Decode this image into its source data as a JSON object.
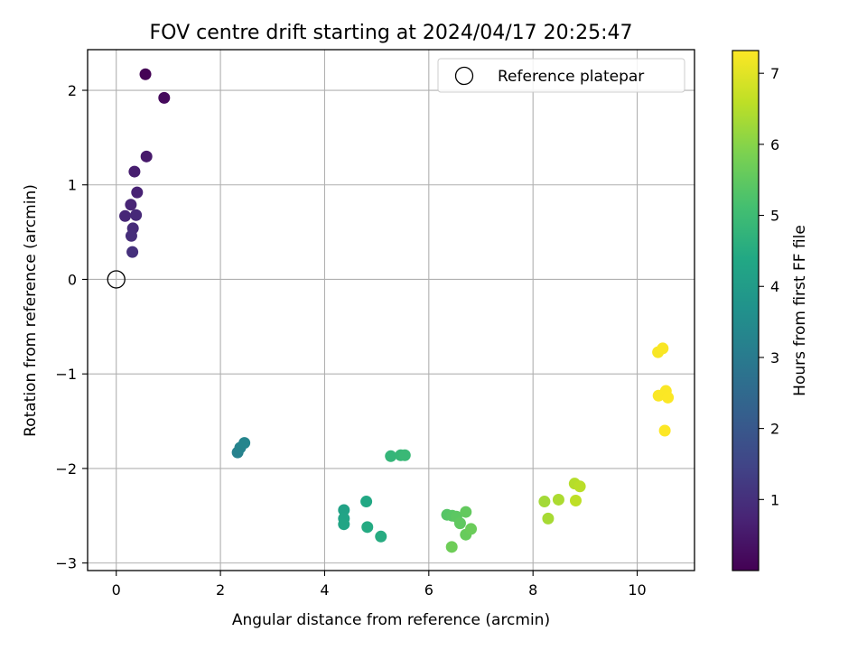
{
  "chart_data": {
    "type": "scatter",
    "title": "FOV centre drift starting at 2024/04/17 20:25:47",
    "xlabel": "Angular distance from reference (arcmin)",
    "ylabel": "Rotation from reference (arcmin)",
    "colorbar_label": "Hours from first FF file",
    "xlim": [
      -0.55,
      11.1
    ],
    "ylim": [
      -3.08,
      2.43
    ],
    "x_ticks": [
      0,
      2,
      4,
      6,
      8,
      10
    ],
    "y_ticks": [
      -3,
      -2,
      -1,
      0,
      1,
      2
    ],
    "colorbar_range": [
      0.0,
      7.32
    ],
    "colorbar_ticks": [
      1,
      2,
      3,
      4,
      5,
      6,
      7
    ],
    "colormap": "viridis",
    "grid": true,
    "legend_position": "upper-right",
    "legend_entries": [
      {
        "label": "Reference platepar",
        "marker": "open-circle",
        "color": "#000000"
      }
    ],
    "reference_point": {
      "x": 0.0,
      "y": 0.0
    },
    "points": [
      {
        "x": 0.56,
        "y": 2.17,
        "hours": 0.02
      },
      {
        "x": 0.92,
        "y": 1.92,
        "hours": 0.17
      },
      {
        "x": 0.58,
        "y": 1.3,
        "hours": 0.5
      },
      {
        "x": 0.35,
        "y": 1.14,
        "hours": 0.6
      },
      {
        "x": 0.4,
        "y": 0.92,
        "hours": 0.7
      },
      {
        "x": 0.28,
        "y": 0.79,
        "hours": 0.75
      },
      {
        "x": 0.17,
        "y": 0.67,
        "hours": 0.8
      },
      {
        "x": 0.38,
        "y": 0.68,
        "hours": 0.85
      },
      {
        "x": 0.32,
        "y": 0.54,
        "hours": 0.9
      },
      {
        "x": 0.29,
        "y": 0.46,
        "hours": 0.95
      },
      {
        "x": 0.31,
        "y": 0.29,
        "hours": 1.0
      },
      {
        "x": 2.33,
        "y": -1.83,
        "hours": 3.2
      },
      {
        "x": 2.38,
        "y": -1.78,
        "hours": 3.25
      },
      {
        "x": 2.46,
        "y": -1.73,
        "hours": 3.3
      },
      {
        "x": 4.37,
        "y": -2.44,
        "hours": 4.2
      },
      {
        "x": 4.37,
        "y": -2.53,
        "hours": 4.25
      },
      {
        "x": 4.37,
        "y": -2.59,
        "hours": 4.3
      },
      {
        "x": 4.8,
        "y": -2.35,
        "hours": 4.4
      },
      {
        "x": 4.82,
        "y": -2.62,
        "hours": 4.45
      },
      {
        "x": 5.08,
        "y": -2.72,
        "hours": 4.5
      },
      {
        "x": 5.27,
        "y": -1.87,
        "hours": 4.8
      },
      {
        "x": 5.46,
        "y": -1.86,
        "hours": 4.85
      },
      {
        "x": 5.54,
        "y": -1.86,
        "hours": 4.9
      },
      {
        "x": 6.35,
        "y": -2.49,
        "hours": 5.35
      },
      {
        "x": 6.45,
        "y": -2.5,
        "hours": 5.4
      },
      {
        "x": 6.53,
        "y": -2.51,
        "hours": 5.45
      },
      {
        "x": 6.6,
        "y": -2.58,
        "hours": 5.5
      },
      {
        "x": 6.71,
        "y": -2.46,
        "hours": 5.55
      },
      {
        "x": 6.71,
        "y": -2.7,
        "hours": 5.6
      },
      {
        "x": 6.81,
        "y": -2.64,
        "hours": 5.65
      },
      {
        "x": 6.44,
        "y": -2.83,
        "hours": 5.7
      },
      {
        "x": 8.22,
        "y": -2.35,
        "hours": 6.3
      },
      {
        "x": 8.29,
        "y": -2.53,
        "hours": 6.35
      },
      {
        "x": 8.49,
        "y": -2.33,
        "hours": 6.4
      },
      {
        "x": 8.8,
        "y": -2.16,
        "hours": 6.5
      },
      {
        "x": 8.9,
        "y": -2.19,
        "hours": 6.55
      },
      {
        "x": 8.82,
        "y": -2.34,
        "hours": 6.6
      },
      {
        "x": 10.4,
        "y": -0.77,
        "hours": 7.25
      },
      {
        "x": 10.49,
        "y": -0.73,
        "hours": 7.27
      },
      {
        "x": 10.41,
        "y": -1.23,
        "hours": 7.28
      },
      {
        "x": 10.55,
        "y": -1.18,
        "hours": 7.29
      },
      {
        "x": 10.59,
        "y": -1.25,
        "hours": 7.3
      },
      {
        "x": 10.53,
        "y": -1.6,
        "hours": 7.31
      }
    ]
  }
}
